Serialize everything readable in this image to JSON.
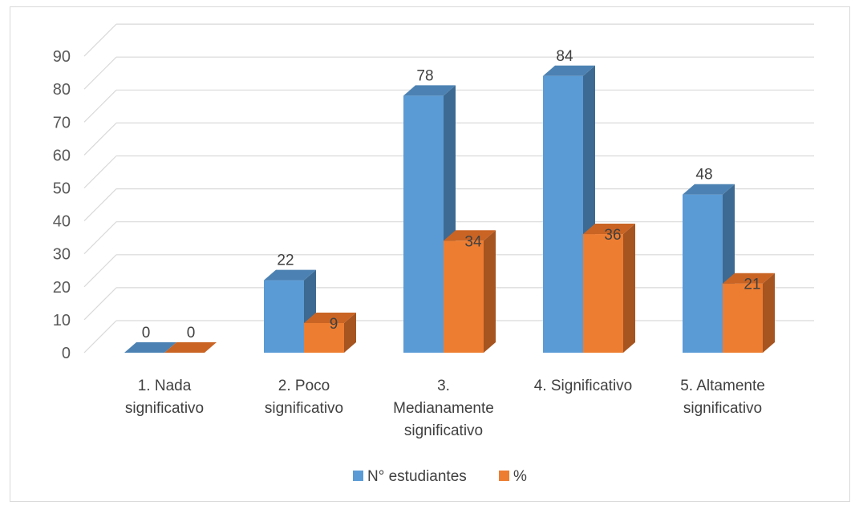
{
  "chart_data": {
    "type": "bar",
    "style": "3d-clustered-column",
    "categories": [
      [
        "1. Nada",
        "significativo"
      ],
      [
        "2. Poco",
        "significativo"
      ],
      [
        "3.",
        "Medianamente",
        "significativo"
      ],
      [
        "4. Significativo"
      ],
      [
        "5. Altamente",
        "significativo"
      ]
    ],
    "series": [
      {
        "name": "N° estudiantes",
        "values": [
          0,
          22,
          78,
          84,
          48
        ],
        "color": "#5b9bd5",
        "side_color": "#3d6a93",
        "top_color": "#4c82b3"
      },
      {
        "name": "%",
        "values": [
          0,
          9,
          34,
          36,
          21
        ],
        "color": "#ed7d31",
        "side_color": "#a65420",
        "top_color": "#c96424"
      }
    ],
    "yticks": [
      0,
      10,
      20,
      30,
      40,
      50,
      60,
      70,
      80,
      90
    ],
    "ylim": [
      0,
      90
    ],
    "grid": true,
    "legend_position": "bottom"
  }
}
